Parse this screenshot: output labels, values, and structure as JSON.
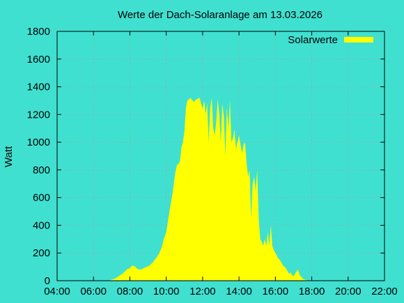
{
  "chart_data": {
    "type": "area",
    "title": "Werte der Dach-Solaranlage am 13.03.2026",
    "ylabel": "Watt",
    "xlabel": "",
    "xlim": [
      "04:00",
      "22:00"
    ],
    "ylim": [
      0,
      1800
    ],
    "x_ticks": [
      "04:00",
      "06:00",
      "08:00",
      "10:00",
      "12:00",
      "14:00",
      "16:00",
      "18:00",
      "20:00",
      "22:00"
    ],
    "y_ticks": [
      0,
      200,
      400,
      600,
      800,
      1000,
      1200,
      1400,
      1600,
      1800
    ],
    "grid": true,
    "legend_position": "top-right",
    "colors": {
      "background": "#40e0d0",
      "series": "#ffff00",
      "axis": "#000000",
      "grid": "#a0a0a0"
    },
    "series": [
      {
        "name": "Solarwerte",
        "x": [
          "06:55",
          "07:05",
          "07:15",
          "07:25",
          "07:35",
          "07:45",
          "07:52",
          "08:00",
          "08:08",
          "08:15",
          "08:25",
          "08:35",
          "08:45",
          "08:55",
          "09:05",
          "09:15",
          "09:25",
          "09:35",
          "09:45",
          "09:52",
          "10:00",
          "10:05",
          "10:12",
          "10:20",
          "10:25",
          "10:30",
          "10:35",
          "10:45",
          "10:50",
          "10:55",
          "11:00",
          "11:05",
          "11:10",
          "11:15",
          "11:20",
          "11:30",
          "11:40",
          "11:50",
          "12:00",
          "12:05",
          "12:10",
          "12:15",
          "12:20",
          "12:25",
          "12:30",
          "12:35",
          "12:40",
          "12:45",
          "12:50",
          "12:55",
          "13:00",
          "13:05",
          "13:10",
          "13:15",
          "13:20",
          "13:25",
          "13:30",
          "13:35",
          "13:40",
          "13:45",
          "13:50",
          "13:55",
          "14:00",
          "14:05",
          "14:10",
          "14:15",
          "14:20",
          "14:25",
          "14:30",
          "14:35",
          "14:40",
          "14:45",
          "14:50",
          "14:55",
          "15:00",
          "15:05",
          "15:10",
          "15:15",
          "15:20",
          "15:25",
          "15:30",
          "15:35",
          "15:40",
          "15:45",
          "15:50",
          "15:55",
          "16:00",
          "16:05",
          "16:10",
          "16:15",
          "16:20",
          "16:25",
          "16:30",
          "16:35",
          "16:40",
          "16:45",
          "16:50",
          "16:55",
          "17:00",
          "17:05",
          "17:10",
          "17:15",
          "17:20",
          "17:25",
          "17:30",
          "17:35",
          "17:40",
          "17:45",
          "17:50",
          "17:55"
        ],
        "y": [
          5,
          10,
          20,
          35,
          50,
          70,
          85,
          90,
          110,
          105,
          85,
          80,
          90,
          100,
          110,
          130,
          160,
          190,
          240,
          300,
          350,
          420,
          520,
          620,
          700,
          780,
          830,
          860,
          960,
          1000,
          1080,
          1250,
          1300,
          1310,
          1320,
          1290,
          1310,
          1320,
          1240,
          1300,
          1200,
          1280,
          1000,
          1250,
          1320,
          1100,
          1050,
          1150,
          1310,
          1200,
          1000,
          1280,
          1180,
          900,
          1250,
          1100,
          1300,
          1000,
          1030,
          1090,
          950,
          1000,
          1050,
          980,
          920,
          980,
          1000,
          850,
          750,
          800,
          450,
          700,
          750,
          650,
          800,
          450,
          300,
          280,
          250,
          300,
          250,
          350,
          250,
          400,
          250,
          220,
          200,
          180,
          160,
          150,
          130,
          110,
          100,
          90,
          70,
          50,
          60,
          40,
          30,
          50,
          70,
          80,
          40,
          30,
          15,
          10,
          5,
          3,
          2,
          0
        ]
      }
    ]
  }
}
